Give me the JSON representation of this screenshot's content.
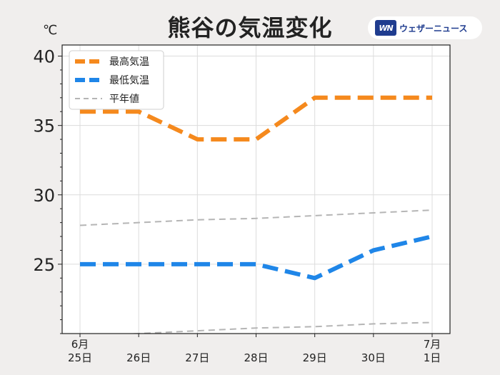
{
  "header": {
    "title": "熊谷の気温変化",
    "brand_logo": "WN",
    "brand_name": "ウェザーニュース"
  },
  "chart_data": {
    "type": "line",
    "title": "熊谷の気温変化",
    "ylabel": "℃",
    "xlabel": "",
    "categories": [
      "6月\n25日",
      "26日",
      "27日",
      "28日",
      "29日",
      "30日",
      "7月\n1日"
    ],
    "ylim": [
      20,
      40.8
    ],
    "yticks": [
      25,
      30,
      35,
      40
    ],
    "grid": true,
    "legend_position": "top-left",
    "series": [
      {
        "name": "最高気温",
        "color": "#f5891d",
        "style": "dashed-thick",
        "values": [
          36,
          36,
          34,
          34,
          37,
          37,
          37
        ]
      },
      {
        "name": "最低気温",
        "color": "#1f86e8",
        "style": "dashed-thick",
        "values": [
          25,
          25,
          25,
          25,
          24,
          26,
          27
        ]
      },
      {
        "name": "平年値",
        "color": "#b5b5b5",
        "style": "dashed-thin",
        "values": [
          27.8,
          28.0,
          28.2,
          28.3,
          28.5,
          28.7,
          28.9
        ]
      },
      {
        "name": "",
        "color": "#b5b5b5",
        "style": "dashed-thin",
        "legend": false,
        "values": [
          19.8,
          20.0,
          20.2,
          20.4,
          20.5,
          20.7,
          20.8
        ]
      }
    ]
  }
}
